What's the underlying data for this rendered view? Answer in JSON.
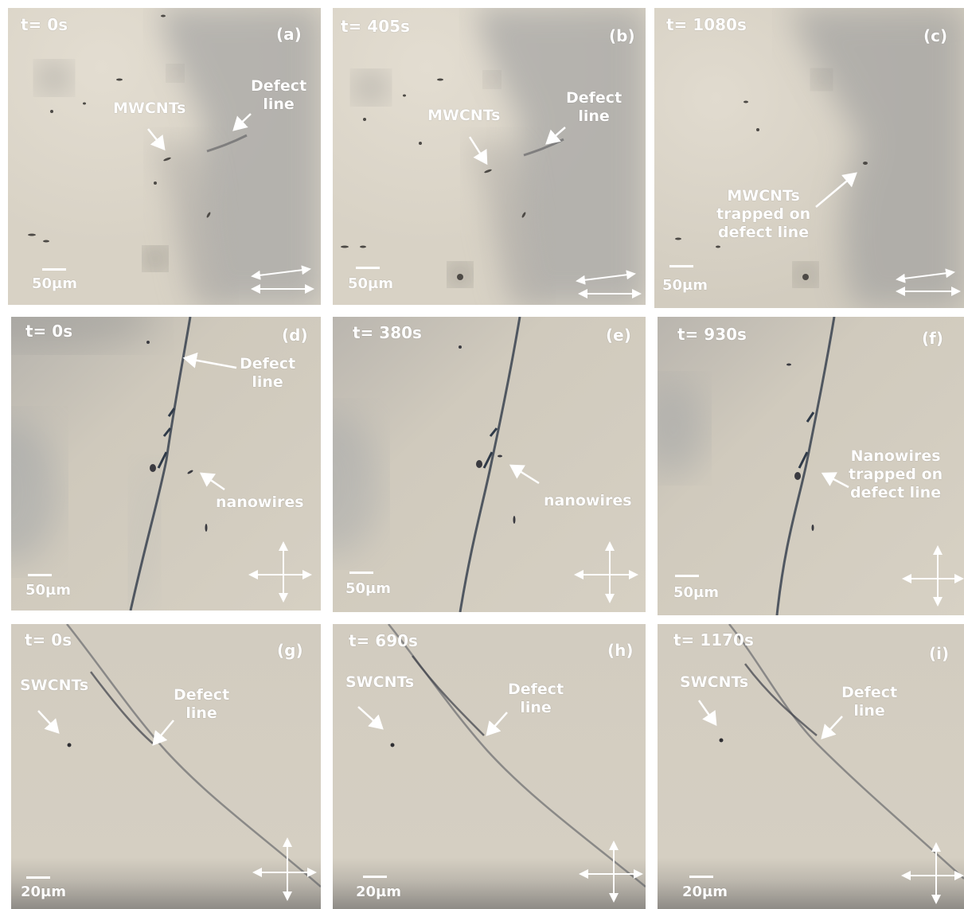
{
  "panels": [
    {
      "id": "a",
      "letter": "(a)",
      "time": "t= 0s",
      "scale": "50µm",
      "labels": [
        "MWCNTs",
        "Defect\nline"
      ],
      "polarizer": "parallel"
    },
    {
      "id": "b",
      "letter": "(b)",
      "time": "t= 405s",
      "scale": "50µm",
      "labels": [
        "MWCNTs",
        "Defect\nline"
      ],
      "polarizer": "parallel"
    },
    {
      "id": "c",
      "letter": "(c)",
      "time": "t= 1080s",
      "scale": "50µm",
      "labels": [
        "MWCNTs\ntrapped on\ndefect line"
      ],
      "polarizer": "parallel"
    },
    {
      "id": "d",
      "letter": "(d)",
      "time": "t= 0s",
      "scale": "50µm",
      "labels": [
        "Defect\nline",
        "nanowires"
      ],
      "polarizer": "crossed"
    },
    {
      "id": "e",
      "letter": "(e)",
      "time": "t= 380s",
      "scale": "50µm",
      "labels": [
        "nanowires"
      ],
      "polarizer": "crossed"
    },
    {
      "id": "f",
      "letter": "(f)",
      "time": "t= 930s",
      "scale": "50µm",
      "labels": [
        "Nanowires\ntrapped on\ndefect line"
      ],
      "polarizer": "crossed"
    },
    {
      "id": "g",
      "letter": "(g)",
      "time": "t= 0s",
      "scale": "20µm",
      "labels": [
        "SWCNTs",
        "Defect\nline"
      ],
      "polarizer": "crossed"
    },
    {
      "id": "h",
      "letter": "(h)",
      "time": "t= 690s",
      "scale": "20µm",
      "labels": [
        "SWCNTs",
        "Defect\nline"
      ],
      "polarizer": "crossed"
    },
    {
      "id": "i",
      "letter": "(i)",
      "time": "t= 1170s",
      "scale": "20µm",
      "labels": [
        "SWCNTs",
        "Defect\nline"
      ],
      "polarizer": "crossed"
    }
  ]
}
